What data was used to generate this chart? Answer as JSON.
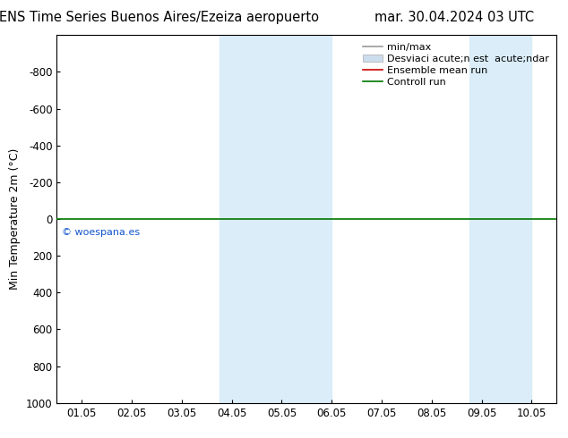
{
  "title_left": "ENS Time Series Buenos Aires/Ezeiza aeropuerto",
  "title_right": "mar. 30.04.2024 03 UTC",
  "ylabel": "Min Temperature 2m (°C)",
  "ylim_top": -1000,
  "ylim_bottom": 1000,
  "yticks": [
    -800,
    -600,
    -400,
    -200,
    0,
    200,
    400,
    600,
    800,
    1000
  ],
  "xtick_labels": [
    "01.05",
    "02.05",
    "03.05",
    "04.05",
    "05.05",
    "06.05",
    "07.05",
    "08.05",
    "09.05",
    "10.05"
  ],
  "xtick_positions": [
    1,
    2,
    3,
    4,
    5,
    6,
    7,
    8,
    9,
    10
  ],
  "xlim": [
    0.5,
    10.5
  ],
  "shaded_bands": [
    {
      "xstart": 3.75,
      "xend": 6.0,
      "color": "#daedf8"
    },
    {
      "xstart": 8.75,
      "xend": 10.0,
      "color": "#daedf8"
    }
  ],
  "green_line_y": 0,
  "green_line_color": "#007700",
  "watermark": "© woespana.es",
  "watermark_color": "#1155cc",
  "legend_label_minmax": "min/max",
  "legend_label_std": "Desviaci acute;n est  acute;ndar",
  "legend_label_ensemble": "Ensemble mean run",
  "legend_label_control": "Controll run",
  "background_color": "#ffffff",
  "plot_bg_color": "#ffffff",
  "title_fontsize": 10.5,
  "axis_label_fontsize": 9,
  "tick_fontsize": 8.5,
  "legend_fontsize": 8
}
